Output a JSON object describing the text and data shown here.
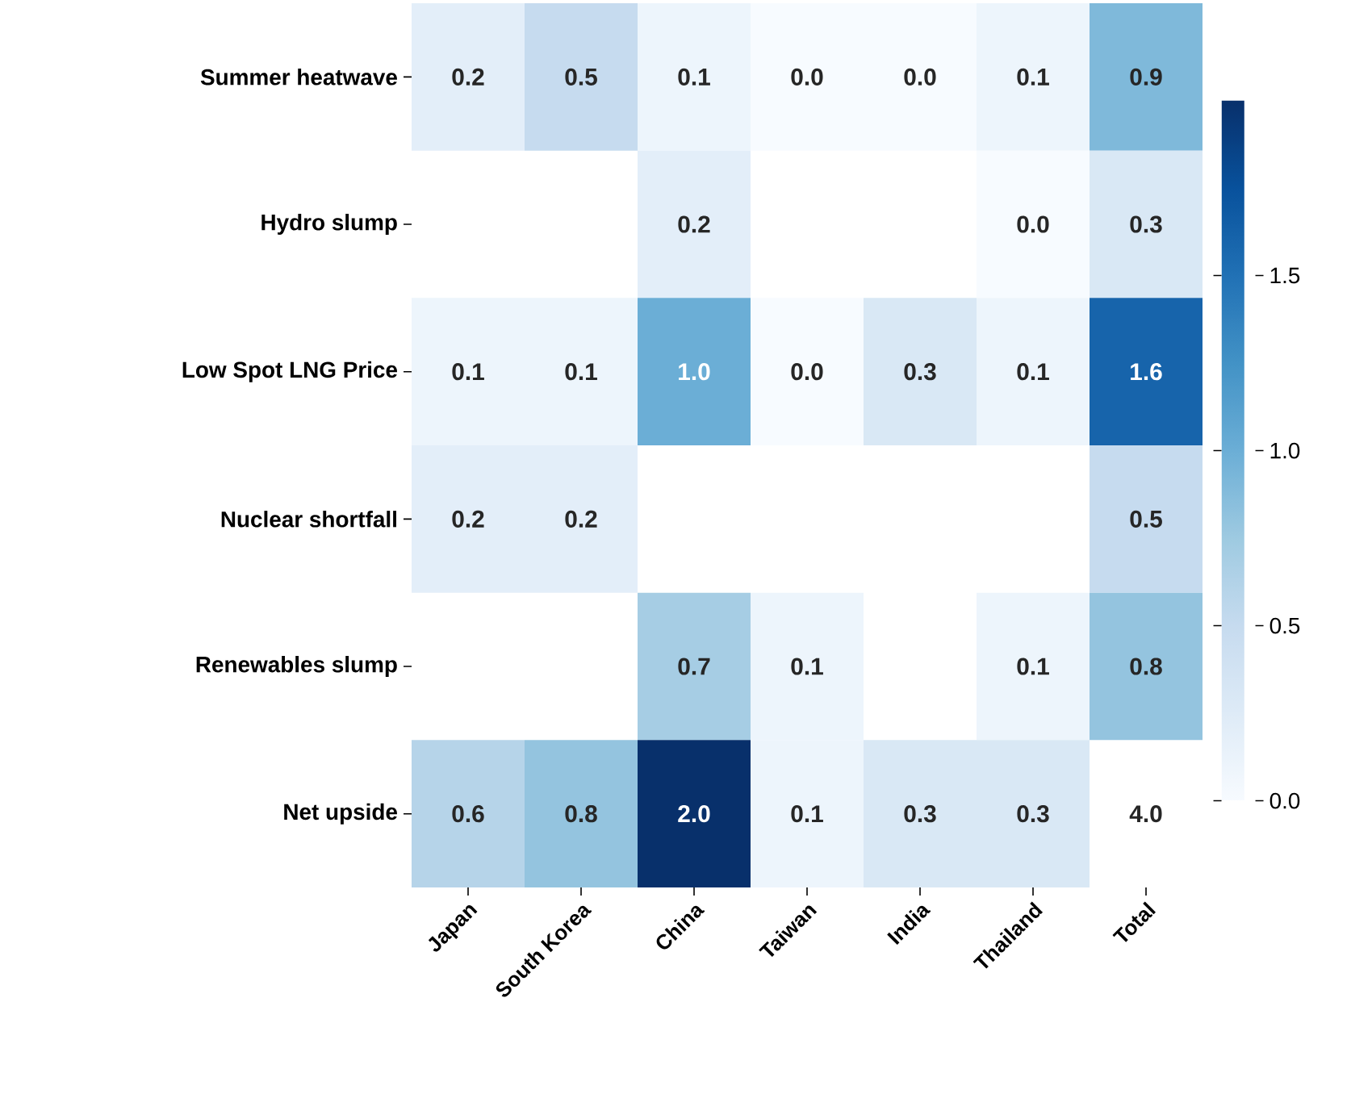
{
  "chart_data": {
    "type": "heatmap",
    "categories": [
      "Japan",
      "South Korea",
      "China",
      "Taiwan",
      "India",
      "Thailand",
      "Total"
    ],
    "y_categories": [
      "Summer heatwave",
      "Hydro slump",
      "Low Spot LNG Price",
      "Nuclear shortfall",
      "Renewables slump",
      "Net upside"
    ],
    "cells": [
      [
        0.2,
        0.5,
        0.1,
        0.0,
        0.0,
        0.1,
        0.9
      ],
      [
        null,
        null,
        0.2,
        null,
        null,
        0.0,
        0.3
      ],
      [
        0.1,
        0.1,
        1.0,
        0.0,
        0.3,
        0.1,
        1.6
      ],
      [
        0.2,
        0.2,
        null,
        null,
        null,
        null,
        0.5
      ],
      [
        null,
        null,
        0.7,
        0.1,
        null,
        0.1,
        0.8
      ],
      [
        0.6,
        0.8,
        2.0,
        0.1,
        0.3,
        0.3,
        null
      ]
    ],
    "cell_labels": [
      [
        "0.2",
        "0.5",
        "0.1",
        "0.0",
        "0.0",
        "0.1",
        "0.9"
      ],
      [
        null,
        null,
        "0.2",
        null,
        null,
        "0.0",
        "0.3"
      ],
      [
        "0.1",
        "0.1",
        "1.0",
        "0.0",
        "0.3",
        "0.1",
        "1.6"
      ],
      [
        "0.2",
        "0.2",
        null,
        null,
        null,
        null,
        "0.5"
      ],
      [
        null,
        null,
        "0.7",
        "0.1",
        null,
        "0.1",
        "0.8"
      ],
      [
        "0.6",
        "0.8",
        "2.0",
        "0.1",
        "0.3",
        "0.3",
        "4.0"
      ]
    ],
    "clim": [
      0,
      2.0
    ],
    "cticks": [
      {
        "value": 0,
        "label": "0.0"
      },
      {
        "value": 0.5,
        "label": "0.5"
      },
      {
        "value": 1.0,
        "label": "1.0"
      },
      {
        "value": 1.5,
        "label": "1.5"
      }
    ]
  }
}
